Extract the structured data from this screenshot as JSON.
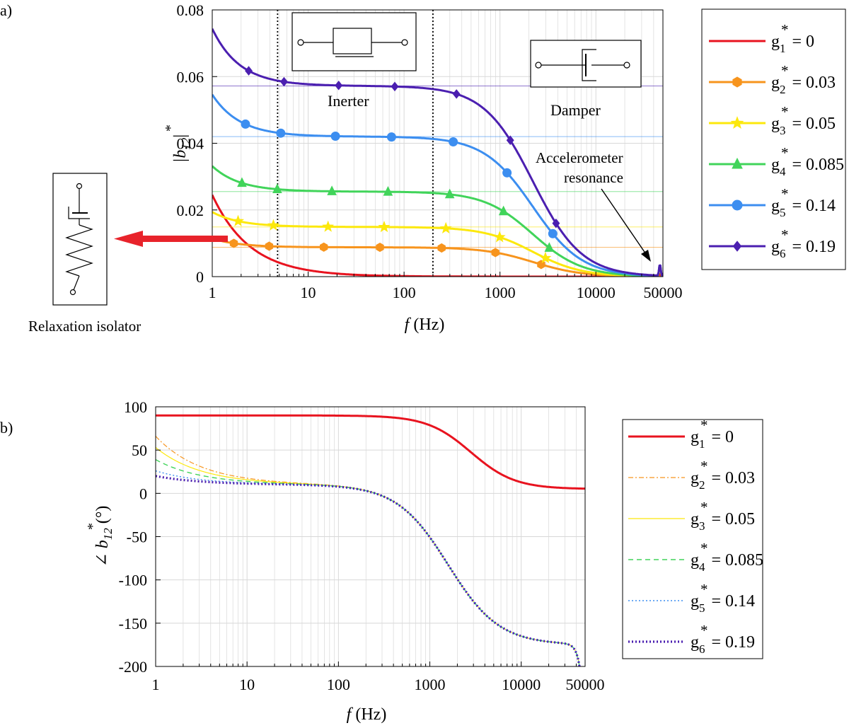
{
  "colors": {
    "g1": "#e8131f",
    "g2": "#f7941d",
    "g3": "#fce80c",
    "g4": "#41d45a",
    "g5": "#3c8ef0",
    "g6": "#4b1fb0",
    "grid": "#d8d8d8",
    "arrow": "#e8232b"
  },
  "chart_data": [
    {
      "id": "a",
      "panel_label": "a)",
      "type": "line",
      "title": "",
      "xlabel_italic": "f",
      "xlabel_rest": " (Hz)",
      "ylabel": {
        "base": "|b",
        "sup": "*",
        "sub": "12",
        "end": "|"
      },
      "xscale": "log",
      "xlim": [
        1,
        50000
      ],
      "ylim": [
        0,
        0.08
      ],
      "x_ticks": [
        1,
        10,
        100,
        1000,
        10000,
        50000
      ],
      "x_tick_labels": [
        "1",
        "10",
        "100",
        "1000",
        "10000",
        "50000"
      ],
      "y_ticks": [
        0,
        0.02,
        0.04,
        0.06,
        0.08
      ],
      "y_tick_labels": [
        "0",
        "0.02",
        "0.04",
        "0.06",
        "0.08"
      ],
      "grid": true,
      "legend_position": "outside-right",
      "vlines": [
        4.8,
        200
      ],
      "model": {
        "fc": 2200,
        "n": 1.7,
        "peak_x": 46500,
        "peak_h": 0.0035
      },
      "series": [
        {
          "key": "g1",
          "sub": "1",
          "value_text": "= 0",
          "plateau": 0,
          "marker": "none",
          "color_key": "g1",
          "style": "solid",
          "w": 3
        },
        {
          "key": "g2",
          "sub": "2",
          "value_text": "= 0.03",
          "plateau": 0.0088,
          "marker": "hexagon",
          "color_key": "g2",
          "style": "solid",
          "w": 3
        },
        {
          "key": "g3",
          "sub": "3",
          "value_text": "= 0.05",
          "plateau": 0.0149,
          "marker": "star",
          "color_key": "g3",
          "style": "solid",
          "w": 3
        },
        {
          "key": "g4",
          "sub": "4",
          "value_text": "= 0.085",
          "plateau": 0.0255,
          "marker": "triangle",
          "color_key": "g4",
          "style": "solid",
          "w": 3
        },
        {
          "key": "g5",
          "sub": "5",
          "value_text": "= 0.14",
          "plateau": 0.042,
          "marker": "circle",
          "color_key": "g5",
          "style": "solid",
          "w": 3
        },
        {
          "key": "g6",
          "sub": "6",
          "value_text": "= 0.19",
          "plateau": 0.0572,
          "marker": "diamond",
          "color_key": "g6",
          "style": "solid",
          "w": 3
        }
      ],
      "annotations": {
        "inerter": "Inerter",
        "damper": "Damper",
        "accel_line1": "Accelerometer",
        "accel_line2": "resonance",
        "relaxation": "Relaxation isolator"
      }
    },
    {
      "id": "b",
      "panel_label": "b)",
      "type": "line",
      "title": "",
      "xlabel_italic": "f",
      "xlabel_rest": " (Hz)",
      "ylabel": {
        "base": "∠ b",
        "sup": "*",
        "sub": "12",
        "end": " (°)"
      },
      "xscale": "log",
      "xlim": [
        1,
        50000
      ],
      "ylim": [
        -200,
        100
      ],
      "x_ticks": [
        1,
        10,
        100,
        1000,
        10000,
        50000
      ],
      "x_tick_labels": [
        "1",
        "10",
        "100",
        "1000",
        "10000",
        "50000"
      ],
      "y_ticks": [
        -200,
        -150,
        -100,
        -50,
        0,
        50,
        100
      ],
      "y_tick_labels": [
        "-200",
        "-150",
        "-100",
        "-50",
        "0",
        "50",
        "100"
      ],
      "grid": true,
      "legend_position": "outside-right",
      "series": [
        {
          "key": "g1",
          "sub": "1",
          "value_text": "= 0",
          "start_value": 90,
          "color_key": "g1",
          "style": "solid",
          "w": 3
        },
        {
          "key": "g2",
          "sub": "2",
          "value_text": "= 0.03",
          "start_value": 66,
          "color_key": "g2",
          "style": "dashdot",
          "w": 1.2
        },
        {
          "key": "g3",
          "sub": "3",
          "value_text": "= 0.05",
          "start_value": 53,
          "color_key": "g3",
          "style": "solid",
          "w": 1.2
        },
        {
          "key": "g4",
          "sub": "4",
          "value_text": "= 0.085",
          "start_value": 39,
          "color_key": "g4",
          "style": "dashed",
          "w": 1.4
        },
        {
          "key": "g5",
          "sub": "5",
          "value_text": "= 0.14",
          "start_value": 26,
          "color_key": "g5",
          "style": "dotted",
          "w": 1.4
        },
        {
          "key": "g6",
          "sub": "6",
          "value_text": "= 0.19",
          "start_value": 20,
          "color_key": "g6",
          "style": "dotted",
          "w": 3.2
        }
      ]
    }
  ]
}
